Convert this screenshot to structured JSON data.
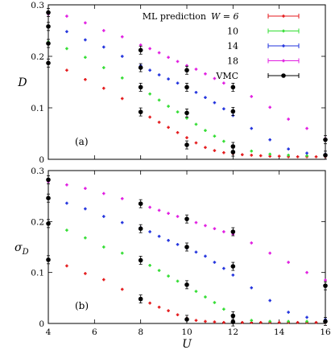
{
  "chart_data": [
    {
      "type": "scatter",
      "panel_label": "(a)",
      "ylabel": "D",
      "xlabel": "",
      "xlim": [
        4,
        16
      ],
      "ylim": [
        0,
        0.3
      ],
      "xticks": [],
      "yticks": [
        0,
        0.1,
        0.2,
        0.3
      ],
      "legend": {
        "title": "ML prediction",
        "W_prefix": "W = ",
        "placement": "top-right"
      },
      "series": [
        {
          "name": "6",
          "color": "#e41a1c",
          "x": [
            4,
            4.8,
            5.6,
            6.4,
            7.2,
            8,
            8.4,
            8.8,
            9.2,
            9.6,
            10,
            10.4,
            10.8,
            11.2,
            11.6,
            12,
            12.4,
            12.8,
            13.2,
            13.6,
            14,
            14.4,
            14.8,
            15.2,
            15.6,
            16
          ],
          "y": [
            0.188,
            0.173,
            0.155,
            0.138,
            0.118,
            0.093,
            0.082,
            0.072,
            0.062,
            0.052,
            0.042,
            0.032,
            0.023,
            0.017,
            0.013,
            0.011,
            0.009,
            0.008,
            0.007,
            0.006,
            0.006,
            0.005,
            0.005,
            0.005,
            0.005,
            0.005
          ]
        },
        {
          "name": "10",
          "color": "#33dd33",
          "x": [
            4,
            4.8,
            5.6,
            6.4,
            7.2,
            8,
            8.4,
            8.8,
            9.2,
            9.6,
            10,
            10.4,
            10.8,
            11.2,
            11.6,
            12,
            12.8,
            13.6,
            14.4,
            15.2,
            16
          ],
          "y": [
            0.228,
            0.215,
            0.198,
            0.178,
            0.158,
            0.14,
            0.127,
            0.115,
            0.103,
            0.092,
            0.08,
            0.068,
            0.056,
            0.045,
            0.035,
            0.026,
            0.016,
            0.01,
            0.008,
            0.007,
            0.007
          ]
        },
        {
          "name": "14",
          "color": "#2233dd",
          "x": [
            4,
            4.8,
            5.6,
            6.4,
            7.2,
            8,
            8.4,
            8.8,
            9.2,
            9.6,
            10,
            10.4,
            10.8,
            11.2,
            11.6,
            12,
            12.8,
            13.6,
            14.4,
            15.2,
            16
          ],
          "y": [
            0.258,
            0.248,
            0.232,
            0.218,
            0.2,
            0.182,
            0.173,
            0.164,
            0.156,
            0.148,
            0.14,
            0.13,
            0.12,
            0.11,
            0.098,
            0.085,
            0.06,
            0.038,
            0.02,
            0.012,
            0.01
          ]
        },
        {
          "name": "18",
          "color": "#e11ee1",
          "x": [
            4,
            4.8,
            5.6,
            6.4,
            7.2,
            8,
            8.4,
            8.8,
            9.2,
            9.6,
            10,
            10.4,
            10.8,
            11.2,
            11.6,
            12,
            12.8,
            13.6,
            14.4,
            15.2,
            16
          ],
          "y": [
            0.282,
            0.278,
            0.265,
            0.25,
            0.238,
            0.222,
            0.215,
            0.207,
            0.198,
            0.19,
            0.182,
            0.175,
            0.166,
            0.157,
            0.148,
            0.14,
            0.122,
            0.101,
            0.078,
            0.06,
            0.04
          ]
        },
        {
          "name": "VMC",
          "color": "#000000",
          "marker": "circle",
          "x": [
            4,
            4,
            4,
            4,
            8,
            8,
            8,
            8,
            10,
            10,
            10,
            10,
            12,
            12,
            12,
            12,
            16,
            16
          ],
          "y": [
            0.285,
            0.258,
            0.225,
            0.187,
            0.212,
            0.178,
            0.14,
            0.092,
            0.173,
            0.14,
            0.09,
            0.028,
            0.14,
            0.093,
            0.025,
            0.014,
            0.038,
            0.008
          ]
        }
      ]
    },
    {
      "type": "scatter",
      "panel_label": "(b)",
      "ylabel": "σ_D",
      "xlabel": "U",
      "xlim": [
        4,
        16
      ],
      "ylim": [
        0,
        0.3
      ],
      "xticks": [
        4,
        6,
        8,
        10,
        12,
        14,
        16
      ],
      "yticks": [
        0,
        0.1,
        0.2,
        0.3
      ],
      "series": [
        {
          "name": "6",
          "color": "#e41a1c",
          "x": [
            4,
            4.8,
            5.6,
            6.4,
            7.2,
            8,
            8.4,
            8.8,
            9.2,
            9.6,
            10,
            10.4,
            10.8,
            11.2,
            11.6,
            12,
            12.4,
            12.8,
            13.2,
            13.6,
            14,
            14.4,
            14.8,
            15.2,
            15.6,
            16
          ],
          "y": [
            0.125,
            0.113,
            0.098,
            0.086,
            0.067,
            0.048,
            0.04,
            0.032,
            0.025,
            0.017,
            0.01,
            0.006,
            0.004,
            0.003,
            0.002,
            0.002,
            0.002,
            0.002,
            0.002,
            0.002,
            0.002,
            0.002,
            0.002,
            0.002,
            0.002,
            0.002
          ]
        },
        {
          "name": "10",
          "color": "#33dd33",
          "x": [
            4,
            4.8,
            5.6,
            6.4,
            7.2,
            8,
            8.4,
            8.8,
            9.2,
            9.6,
            10,
            10.4,
            10.8,
            11.2,
            11.6,
            12,
            12.8,
            13.6,
            14.4,
            15.2,
            16
          ],
          "y": [
            0.196,
            0.183,
            0.168,
            0.15,
            0.138,
            0.125,
            0.114,
            0.104,
            0.093,
            0.083,
            0.075,
            0.063,
            0.052,
            0.041,
            0.028,
            0.015,
            0.006,
            0.004,
            0.004,
            0.004,
            0.004
          ]
        },
        {
          "name": "14",
          "color": "#2233dd",
          "x": [
            4,
            4.8,
            5.6,
            6.4,
            7.2,
            8,
            8.4,
            8.8,
            9.2,
            9.6,
            10,
            10.4,
            10.8,
            11.2,
            11.6,
            12,
            12.8,
            13.6,
            14.4,
            15.2,
            16
          ],
          "y": [
            0.246,
            0.236,
            0.225,
            0.21,
            0.198,
            0.188,
            0.18,
            0.171,
            0.163,
            0.155,
            0.148,
            0.14,
            0.132,
            0.12,
            0.108,
            0.095,
            0.07,
            0.045,
            0.022,
            0.012,
            0.008
          ]
        },
        {
          "name": "18",
          "color": "#e11ee1",
          "x": [
            4,
            4.8,
            5.6,
            6.4,
            7.2,
            8,
            8.4,
            8.8,
            9.2,
            9.6,
            10,
            10.4,
            10.8,
            11.2,
            11.6,
            12,
            12.8,
            13.6,
            14.4,
            15.2,
            16
          ],
          "y": [
            0.278,
            0.272,
            0.265,
            0.255,
            0.245,
            0.235,
            0.228,
            0.222,
            0.216,
            0.21,
            0.205,
            0.198,
            0.192,
            0.186,
            0.18,
            0.175,
            0.158,
            0.138,
            0.12,
            0.1,
            0.085
          ]
        },
        {
          "name": "VMC",
          "color": "#000000",
          "marker": "circle",
          "x": [
            4,
            4,
            4,
            4,
            8,
            8,
            8,
            8,
            10,
            10,
            10,
            10,
            12,
            12,
            12,
            12,
            16,
            16
          ],
          "y": [
            0.282,
            0.246,
            0.196,
            0.125,
            0.235,
            0.186,
            0.124,
            0.048,
            0.205,
            0.15,
            0.076,
            0.008,
            0.18,
            0.112,
            0.015,
            0.003,
            0.074,
            0.004
          ]
        }
      ]
    }
  ]
}
